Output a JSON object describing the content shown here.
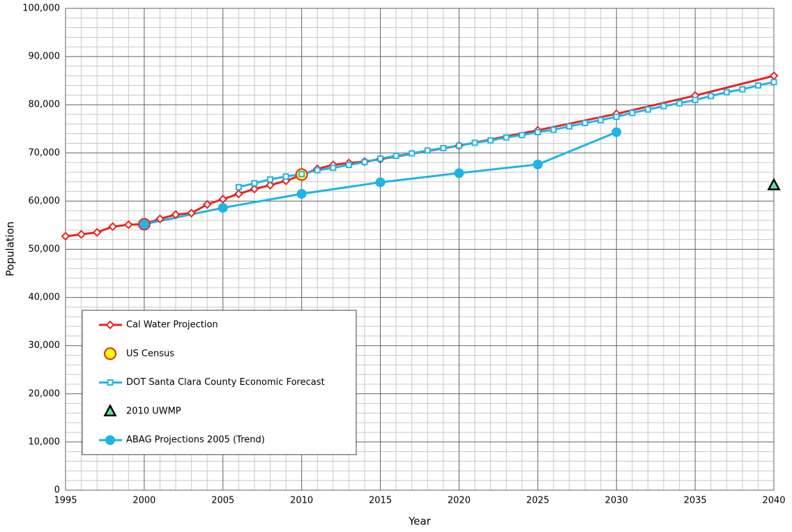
{
  "chart_data": {
    "type": "line",
    "x_label": "Year",
    "y_label": "Population",
    "xlim": [
      1995,
      2040
    ],
    "xticks": [
      1995,
      2000,
      2005,
      2010,
      2015,
      2020,
      2025,
      2030,
      2035,
      2040
    ],
    "ylim": [
      0,
      100000
    ],
    "yticks": [
      0,
      {
        "value": 10000,
        "label": "10,000"
      },
      {
        "value": 20000,
        "label": "20,000"
      },
      {
        "value": 30000,
        "label": "30,000"
      },
      {
        "value": 40000,
        "label": "40,000"
      },
      {
        "value": 50000,
        "label": "50,000"
      },
      {
        "value": 60000,
        "label": "60,000"
      },
      {
        "value": 70000,
        "label": "70,000"
      },
      {
        "value": 80000,
        "label": "80,000"
      },
      {
        "value": 90000,
        "label": "90,000"
      },
      {
        "value": 100000,
        "label": "100,000"
      }
    ],
    "grid": true,
    "minor_grid": true,
    "legend_position": "lower left",
    "series": [
      {
        "name": "Cal Water Projection",
        "color": "#e8231f",
        "marker": "diamond",
        "marker_fill": "#ffffff",
        "line": true,
        "x": [
          1995,
          1996,
          1997,
          1998,
          1999,
          2000,
          2001,
          2002,
          2003,
          2004,
          2005,
          2006,
          2007,
          2008,
          2009,
          2010,
          2011,
          2012,
          2013,
          2014,
          2015,
          2020,
          2025,
          2030,
          2035,
          2040
        ],
        "values": [
          52700,
          53100,
          53500,
          54700,
          55100,
          55200,
          56300,
          57200,
          57500,
          59300,
          60400,
          61500,
          62500,
          63300,
          64200,
          65400,
          66700,
          67500,
          67900,
          68200,
          68700,
          71500,
          74700,
          78100,
          81900,
          86000
        ]
      },
      {
        "name": "US Census",
        "color": "#e8231f",
        "marker": "big-circle",
        "marker_fill": "#ffff00",
        "line": false,
        "x": [
          2000,
          2010
        ],
        "values": [
          55200,
          65500
        ]
      },
      {
        "name": "DOT Santa Clara County Economic Forecast",
        "color": "#1fb4e8",
        "marker": "square",
        "marker_fill": "#ffffff",
        "line": true,
        "x": [
          2006,
          2007,
          2008,
          2009,
          2010,
          2011,
          2012,
          2013,
          2014,
          2015,
          2016,
          2017,
          2018,
          2019,
          2020,
          2021,
          2022,
          2023,
          2024,
          2025,
          2026,
          2027,
          2028,
          2029,
          2030,
          2031,
          2032,
          2033,
          2034,
          2035,
          2036,
          2037,
          2038,
          2039,
          2040
        ],
        "values": [
          62900,
          63700,
          64500,
          65100,
          65600,
          66400,
          66900,
          67500,
          68100,
          68800,
          69400,
          69900,
          70500,
          71000,
          71500,
          72100,
          72600,
          73200,
          73700,
          74300,
          74800,
          75500,
          76200,
          76800,
          77500,
          78300,
          79000,
          79700,
          80300,
          81000,
          81800,
          82600,
          83200,
          84000,
          84700
        ]
      },
      {
        "name": "2010 UWMP",
        "color": "#000000",
        "marker": "triangle",
        "marker_fill": "#66e0a0",
        "line": false,
        "x": [
          2040
        ],
        "values": [
          63300
        ]
      },
      {
        "name": "ABAG Projections 2005 (Trend)",
        "color": "#1fb4e8",
        "marker": "circle",
        "marker_fill": "#1fb4e8",
        "line": true,
        "x": [
          2000,
          2005,
          2010,
          2015,
          2020,
          2025,
          2030
        ],
        "values": [
          55200,
          58600,
          61500,
          63900,
          65800,
          67600,
          74300
        ]
      }
    ]
  }
}
